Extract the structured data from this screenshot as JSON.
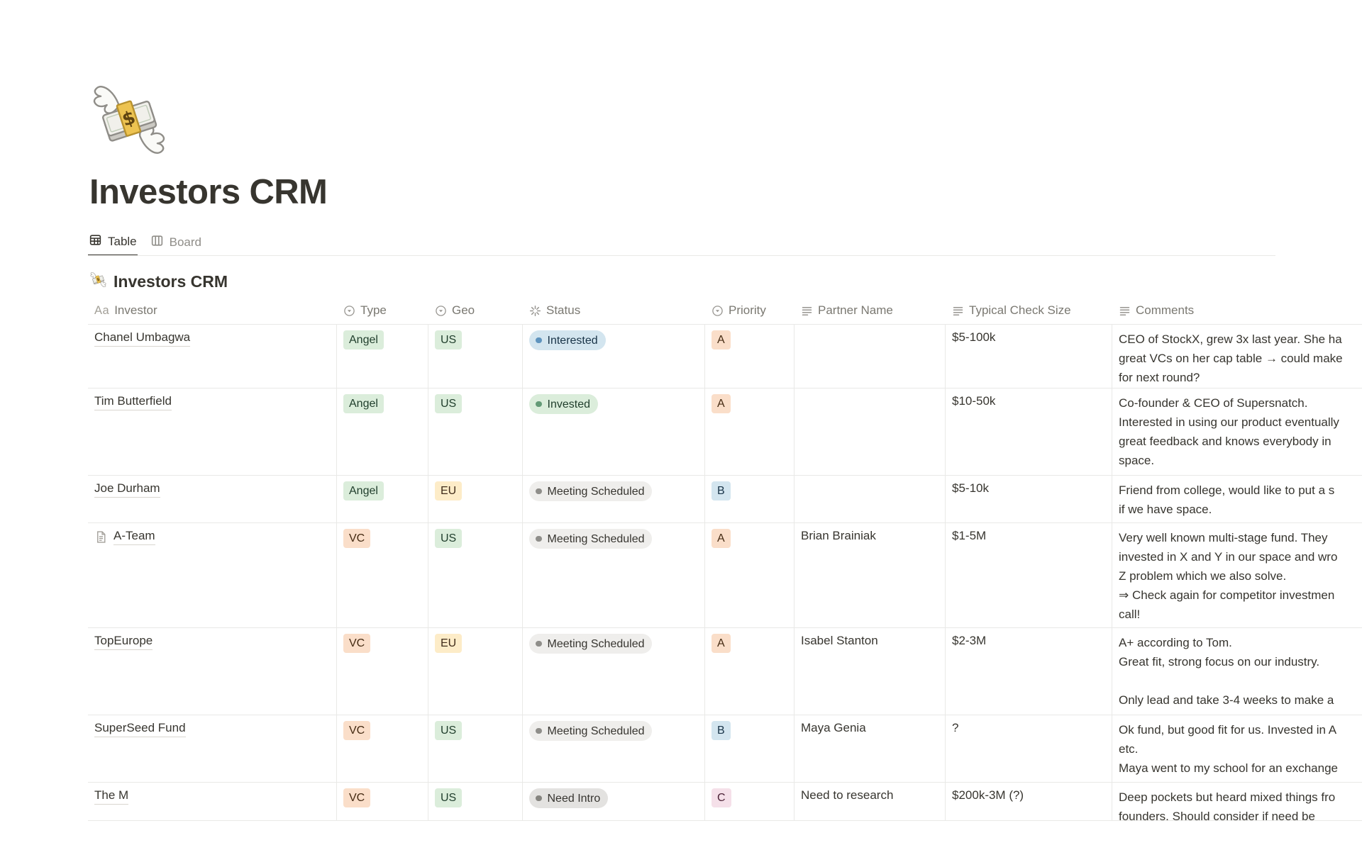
{
  "page": {
    "icon": "money-with-wings",
    "title": "Investors CRM"
  },
  "tabs": [
    {
      "label": "Table",
      "active": true
    },
    {
      "label": "Board",
      "active": false
    }
  ],
  "table": {
    "title": "Investors CRM",
    "icon": "money-with-wings",
    "columns": [
      {
        "label": "Investor",
        "icon": "title-icon"
      },
      {
        "label": "Type",
        "icon": "select-icon"
      },
      {
        "label": "Geo",
        "icon": "select-icon"
      },
      {
        "label": "Status",
        "icon": "status-icon"
      },
      {
        "label": "Priority",
        "icon": "select-icon"
      },
      {
        "label": "Partner Name",
        "icon": "text-icon"
      },
      {
        "label": "Typical Check Size",
        "icon": "text-icon"
      },
      {
        "label": "Comments",
        "icon": "text-icon"
      }
    ],
    "rows": [
      {
        "investor": "Chanel Umbagwa",
        "has_page_icon": false,
        "type": {
          "label": "Angel",
          "color": "green"
        },
        "geo": {
          "label": "US",
          "color": "green"
        },
        "status": {
          "label": "Interested",
          "color": "blue"
        },
        "priority": {
          "label": "A",
          "color": "orange"
        },
        "partner": "",
        "check_size": "$5-100k",
        "comments": [
          "CEO of StockX, grew 3x last year. She ha",
          "great VCs on her cap table → could make",
          "for next round?"
        ]
      },
      {
        "investor": "Tim Butterfield",
        "has_page_icon": false,
        "type": {
          "label": "Angel",
          "color": "green"
        },
        "geo": {
          "label": "US",
          "color": "green"
        },
        "status": {
          "label": "Invested",
          "color": "green"
        },
        "priority": {
          "label": "A",
          "color": "orange"
        },
        "partner": "",
        "check_size": "$10-50k",
        "comments": [
          "Co-founder & CEO of Supersnatch.",
          "Interested in using our product eventually",
          "great feedback and knows everybody in",
          "space."
        ]
      },
      {
        "investor": "Joe Durham",
        "has_page_icon": false,
        "type": {
          "label": "Angel",
          "color": "green"
        },
        "geo": {
          "label": "EU",
          "color": "yellow"
        },
        "status": {
          "label": "Meeting Scheduled",
          "color": "grey_light"
        },
        "priority": {
          "label": "B",
          "color": "blue"
        },
        "partner": "",
        "check_size": "$5-10k",
        "comments": [
          "Friend from college, would like to put a s",
          "if we have space."
        ]
      },
      {
        "investor": "A-Team",
        "has_page_icon": true,
        "type": {
          "label": "VC",
          "color": "orange"
        },
        "geo": {
          "label": "US",
          "color": "green"
        },
        "status": {
          "label": "Meeting Scheduled",
          "color": "grey_light"
        },
        "priority": {
          "label": "A",
          "color": "orange"
        },
        "partner": "Brian Brainiak",
        "check_size": "$1-5M",
        "comments": [
          "Very well known multi-stage fund. They",
          "invested in X and Y in our space and wro",
          "Z problem which we also solve.",
          "⇒ Check again for competitor investmen",
          "call!"
        ]
      },
      {
        "investor": "TopEurope",
        "has_page_icon": false,
        "type": {
          "label": "VC",
          "color": "orange"
        },
        "geo": {
          "label": "EU",
          "color": "yellow"
        },
        "status": {
          "label": "Meeting Scheduled",
          "color": "grey_light"
        },
        "priority": {
          "label": "A",
          "color": "orange"
        },
        "partner": "Isabel Stanton",
        "check_size": "$2-3M",
        "comments": [
          "A+ according to Tom.",
          "Great fit, strong focus on our industry.",
          "",
          "Only lead and take 3-4 weeks to make a"
        ]
      },
      {
        "investor": "SuperSeed Fund",
        "has_page_icon": false,
        "type": {
          "label": "VC",
          "color": "orange"
        },
        "geo": {
          "label": "US",
          "color": "green"
        },
        "status": {
          "label": "Meeting Scheduled",
          "color": "grey_light"
        },
        "priority": {
          "label": "B",
          "color": "blue"
        },
        "partner": "Maya Genia",
        "check_size": "?",
        "comments": [
          "Ok fund, but good fit for us. Invested in A",
          "etc.",
          "Maya went to my school for an exchange"
        ]
      },
      {
        "investor": "The M",
        "has_page_icon": false,
        "type": {
          "label": "VC",
          "color": "orange"
        },
        "geo": {
          "label": "US",
          "color": "green"
        },
        "status": {
          "label": "Need Intro",
          "color": "grey"
        },
        "priority": {
          "label": "C",
          "color": "pink"
        },
        "partner": "Need to research",
        "check_size": "$200k-3M (?)",
        "comments": [
          "Deep pockets but heard mixed things fro",
          "founders. Should consider if need be"
        ]
      }
    ]
  },
  "palette": {
    "green": {
      "bg": "#DBEDDB",
      "text": "#1F3D2B"
    },
    "orange": {
      "bg": "#FADEC9",
      "text": "#442A12"
    },
    "yellow": {
      "bg": "#FDECC8",
      "text": "#402C1B"
    },
    "blue": {
      "bg": "#D3E5EF",
      "text": "#183347"
    },
    "pink": {
      "bg": "#F5E0E9",
      "text": "#4C2337"
    },
    "grey": {
      "bg": "#E3E2E0",
      "text": "#373530"
    },
    "grey_light": {
      "bg": "#EFEEEC",
      "text": "#373530"
    }
  },
  "status_dots": {
    "blue": "#5F94BE",
    "green": "#639A76",
    "grey": "#85847F",
    "grey_light": "#8F8E8A"
  },
  "ui_colors": {
    "text_primary": "#37352F",
    "text_secondary": "#7A7871",
    "border": "#E9E9E7"
  }
}
